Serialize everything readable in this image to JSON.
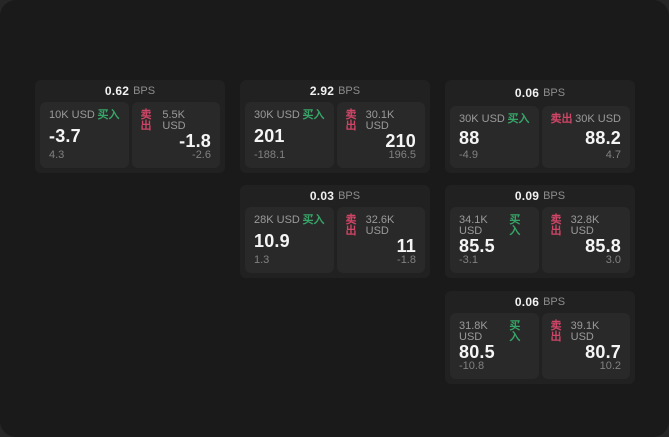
{
  "labels": {
    "bps": "BPS",
    "buy": "买入",
    "sell": "卖出"
  },
  "colors": {
    "buy_green": "#37a568",
    "sell_red": "#cf4566"
  },
  "cards": [
    {
      "bps": "0.62",
      "buy": {
        "size": "10K USD",
        "price": "-3.7",
        "delta": "4.3"
      },
      "sell": {
        "size": "5.5K USD",
        "price": "-1.8",
        "delta": "-2.6"
      }
    },
    {
      "bps": "2.92",
      "buy": {
        "size": "30K USD",
        "price": "201",
        "delta": "-188.1"
      },
      "sell": {
        "size": "30.1K USD",
        "price": "210",
        "delta": "196.5"
      }
    },
    {
      "bps": "0.06",
      "buy": {
        "size": "30K USD",
        "price": "88",
        "delta": "-4.9"
      },
      "sell": {
        "size": "30K USD",
        "price": "88.2",
        "delta": "4.7"
      }
    },
    {
      "bps": "0.03",
      "buy": {
        "size": "28K USD",
        "price": "10.9",
        "delta": "1.3"
      },
      "sell": {
        "size": "32.6K USD",
        "price": "11",
        "delta": "-1.8"
      }
    },
    {
      "bps": "0.09",
      "buy": {
        "size": "34.1K USD",
        "price": "85.5",
        "delta": "-3.1"
      },
      "sell": {
        "size": "32.8K USD",
        "price": "85.8",
        "delta": "3.0"
      }
    },
    {
      "bps": "0.06",
      "buy": {
        "size": "31.8K USD",
        "price": "80.5",
        "delta": "-10.8"
      },
      "sell": {
        "size": "39.1K USD",
        "price": "80.7",
        "delta": "10.2"
      }
    }
  ]
}
